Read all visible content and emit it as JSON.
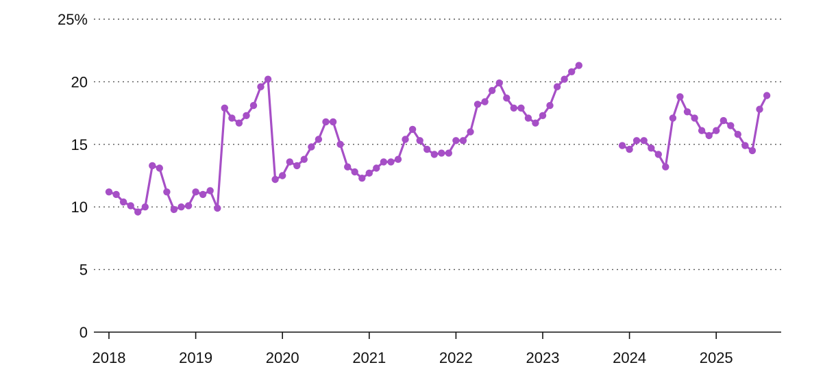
{
  "chart_data": {
    "type": "line",
    "title": "",
    "xlabel": "",
    "ylabel": "",
    "y_unit_suffix": "%",
    "ylim": [
      0,
      25
    ],
    "y_ticks": [
      0,
      5,
      10,
      15,
      20,
      25
    ],
    "y_tick_labels": [
      "0",
      "5",
      "10",
      "15",
      "20",
      "25%"
    ],
    "x_ticks": [
      "2018-01",
      "2019-01",
      "2020-01",
      "2021-01",
      "2022-01",
      "2023-01",
      "2024-01",
      "2025-01"
    ],
    "x_tick_labels": [
      "2018",
      "2019",
      "2020",
      "2021",
      "2022",
      "2023",
      "2024",
      "2025"
    ],
    "xlim": [
      "2017-12",
      "2025-09"
    ],
    "grid": "horizontal dotted",
    "legend": "none",
    "color": "#A64FC6",
    "series": [
      {
        "segments": [
          {
            "x": [
              "2018-01",
              "2018-02",
              "2018-03",
              "2018-04",
              "2018-05",
              "2018-06",
              "2018-07",
              "2018-08",
              "2018-09",
              "2018-10",
              "2018-11",
              "2018-12",
              "2019-01",
              "2019-02",
              "2019-03",
              "2019-04",
              "2019-05",
              "2019-06",
              "2019-07",
              "2019-08",
              "2019-09",
              "2019-10",
              "2019-11",
              "2019-12",
              "2020-01",
              "2020-02",
              "2020-03",
              "2020-04",
              "2020-05",
              "2020-06",
              "2020-07",
              "2020-08",
              "2020-09",
              "2020-10",
              "2020-11",
              "2020-12",
              "2021-01",
              "2021-02",
              "2021-03",
              "2021-04",
              "2021-05",
              "2021-06",
              "2021-07",
              "2021-08",
              "2021-09",
              "2021-10",
              "2021-11",
              "2021-12",
              "2022-01",
              "2022-02",
              "2022-03",
              "2022-04",
              "2022-05",
              "2022-06",
              "2022-07",
              "2022-08",
              "2022-09",
              "2022-10",
              "2022-11",
              "2022-12",
              "2023-01",
              "2023-02",
              "2023-03",
              "2023-04",
              "2023-05",
              "2023-06"
            ],
            "values": [
              11.2,
              11.0,
              10.4,
              10.1,
              9.6,
              10.0,
              13.3,
              13.1,
              11.2,
              9.8,
              10.0,
              10.1,
              11.2,
              11.0,
              11.3,
              9.9,
              17.9,
              17.1,
              16.7,
              17.3,
              18.1,
              19.6,
              20.2,
              12.2,
              12.5,
              13.6,
              13.3,
              13.8,
              14.8,
              15.4,
              16.8,
              16.8,
              15.0,
              13.2,
              12.8,
              12.3,
              12.7,
              13.1,
              13.6,
              13.6,
              13.8,
              15.4,
              16.2,
              15.3,
              14.6,
              14.2,
              14.3,
              14.3,
              15.3,
              15.3,
              16.0,
              18.2,
              18.4,
              19.3,
              19.9,
              18.7,
              17.9,
              17.9,
              17.1,
              16.7,
              17.3,
              18.1,
              19.6,
              20.2,
              20.8,
              21.3
            ]
          },
          {
            "x": [
              "2023-12",
              "2024-01",
              "2024-02",
              "2024-03",
              "2024-04",
              "2024-05",
              "2024-06",
              "2024-07",
              "2024-08",
              "2024-09",
              "2024-10",
              "2024-11",
              "2024-12",
              "2025-01",
              "2025-02",
              "2025-03",
              "2025-04",
              "2025-05",
              "2025-06",
              "2025-07",
              "2025-08"
            ],
            "values": [
              14.9,
              14.6,
              15.3,
              15.3,
              14.7,
              14.2,
              13.2,
              17.1,
              18.8,
              17.6,
              17.1,
              16.1,
              15.7,
              16.1,
              16.9,
              16.5,
              15.8,
              14.9,
              14.5,
              17.8,
              18.9
            ]
          }
        ]
      }
    ]
  }
}
